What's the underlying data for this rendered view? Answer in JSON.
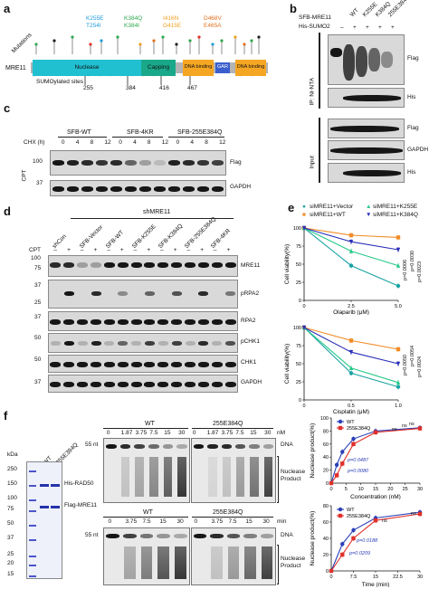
{
  "panels": {
    "a": {
      "label": "a",
      "side_label": "Mutations",
      "protein": "MRE11",
      "mutations": [
        {
          "text": "K255E",
          "color": "#1f9bd8"
        },
        {
          "text": "T254I",
          "color": "#1f9bd8"
        },
        {
          "text": "K384Q",
          "color": "#2fa84f"
        },
        {
          "text": "K384I",
          "color": "#2fa84f"
        },
        {
          "text": "I416N",
          "color": "#f0a020"
        },
        {
          "text": "G415E",
          "color": "#f0a020"
        },
        {
          "text": "D468V",
          "color": "#e07020"
        },
        {
          "text": "E465A",
          "color": "#e07020"
        }
      ],
      "domains": [
        {
          "text": "Nuclease",
          "color": "#20c0d0"
        },
        {
          "text": "Capping",
          "color": "#1aa88a"
        },
        {
          "text": "DNA binding",
          "color": "#f5a623"
        },
        {
          "text": "GAR",
          "color": "#3a5fcd"
        },
        {
          "text": "DNA binding",
          "color": "#f5a623"
        }
      ],
      "sumo_label": "SUMOylated sites",
      "positions": [
        "255",
        "384",
        "416",
        "467"
      ]
    },
    "b": {
      "label": "b",
      "rows": [
        {
          "text": "SFB-MRE11",
          "values": [
            "WT",
            "K255E",
            "K384Q",
            "255E384Q"
          ]
        },
        {
          "text": "His-SUMO2",
          "values": [
            "–",
            "+",
            "+",
            "+",
            "+"
          ]
        }
      ],
      "group_labels": [
        "IP: Ni-NTA",
        "Input"
      ],
      "blot_labels": [
        "Flag",
        "His",
        "Flag",
        "GAPDH",
        "His"
      ]
    },
    "c": {
      "label": "c",
      "groups": [
        "SFB-WT",
        "SFB-4KR",
        "SFB-255E384Q"
      ],
      "chx_label": "CHX (h)",
      "times": [
        "0",
        "4",
        "8",
        "12",
        "0",
        "4",
        "8",
        "12",
        "0",
        "4",
        "8",
        "12"
      ],
      "side_label": "CPT",
      "mw": [
        "100",
        "37"
      ],
      "blot_labels": [
        "Flag",
        "GAPDH"
      ]
    },
    "d": {
      "label": "d",
      "header": "shMRE11",
      "lanes": [
        "shCon",
        "SFB-Vector",
        "SFB-WT",
        "SFB-K255E",
        "SFB-K384Q",
        "SFB-255E384Q",
        "SFB-4KR"
      ],
      "cpt_label": "CPT",
      "cpt_signs": [
        "–",
        "+",
        "–",
        "+",
        "–",
        "+",
        "–",
        "+",
        "–",
        "+",
        "–",
        "+",
        "–",
        "+"
      ],
      "mw": [
        "100",
        "75",
        "37",
        "25",
        "37",
        "50",
        "50",
        "37"
      ],
      "blot_labels": [
        "MRE11",
        "pRPA2",
        "RPA2",
        "pCHK1",
        "CHK1",
        "GAPDH"
      ]
    },
    "e": {
      "label": "e",
      "legend": [
        "siMRE11+Vector",
        "siMRE11+WT",
        "siMRE11+K255E",
        "siMRE11+K384Q"
      ],
      "pvalues_top": [
        "p=0.0030",
        "p=0.0006",
        "p=0.0023"
      ],
      "pvalues_bottom": [
        "p=0.0054",
        "p=0.0050",
        "p=0.0024"
      ]
    },
    "f": {
      "label": "f",
      "sds_kda": "kDa",
      "sds_mw": [
        "250",
        "150",
        "100",
        "75",
        "50",
        "37",
        "25",
        "20",
        "15"
      ],
      "sds_lanes": [
        "WT",
        "255E384Q"
      ],
      "sds_bands": [
        "His-RAD50",
        "Flag-MRE11"
      ],
      "gel1": {
        "groups": [
          "WT",
          "255E384Q"
        ],
        "lanes": [
          "0",
          "1.87",
          "3.75",
          "7.5",
          "15",
          "30",
          "0",
          "1.87",
          "3.75",
          "7.5",
          "15",
          "30"
        ],
        "unit": "nM",
        "marker": "55 nt",
        "labels": [
          "DNA",
          "Nuclease Product"
        ]
      },
      "gel2": {
        "groups": [
          "WT",
          "255E384Q"
        ],
        "lanes": [
          "0",
          "3.75",
          "7.5",
          "15",
          "30",
          "0",
          "3.75",
          "7.5",
          "15",
          "30"
        ],
        "unit": "min",
        "marker": "55 nt",
        "labels": [
          "DNA",
          "Nuclease Product"
        ]
      }
    }
  },
  "chart_data": [
    {
      "type": "line",
      "xlabel": "Olaparib (μM)",
      "ylabel": "Cell viability(%)",
      "x": [
        0,
        2.5,
        5.0
      ],
      "xticks": [
        "0",
        "2.5",
        "5.0"
      ],
      "yticks": [
        "0",
        "25",
        "50",
        "75",
        "100"
      ],
      "ylim": [
        0,
        100
      ],
      "series": [
        {
          "name": "siMRE11+Vector",
          "color": "#1aa3a3",
          "values": [
            100,
            48,
            20
          ]
        },
        {
          "name": "siMRE11+WT",
          "color": "#f28c28",
          "values": [
            100,
            90,
            87
          ]
        },
        {
          "name": "siMRE11+K255E",
          "color": "#26c98a",
          "values": [
            100,
            68,
            48
          ]
        },
        {
          "name": "siMRE11+K384Q",
          "color": "#2a2fb8",
          "values": [
            100,
            81,
            70
          ]
        }
      ]
    },
    {
      "type": "line",
      "xlabel": "Cisplatin (μM)",
      "ylabel": "Cell viability(%)",
      "x": [
        0,
        0.5,
        1.0
      ],
      "xticks": [
        "0",
        "0.5",
        "1.0"
      ],
      "yticks": [
        "0",
        "25",
        "50",
        "75",
        "100"
      ],
      "ylim": [
        0,
        100
      ],
      "series": [
        {
          "name": "siMRE11+Vector",
          "color": "#1aa3a3",
          "values": [
            100,
            37,
            18
          ]
        },
        {
          "name": "siMRE11+WT",
          "color": "#f28c28",
          "values": [
            100,
            82,
            70
          ]
        },
        {
          "name": "siMRE11+K255E",
          "color": "#26c98a",
          "values": [
            100,
            44,
            24
          ]
        },
        {
          "name": "siMRE11+K384Q",
          "color": "#2a2fb8",
          "values": [
            100,
            66,
            50
          ]
        }
      ]
    },
    {
      "type": "line",
      "xlabel": "Concentration (nM)",
      "ylabel": "Nuclease product(%)",
      "x": [
        0,
        1.87,
        3.75,
        7.5,
        15,
        30
      ],
      "xticks": [
        "0",
        "5",
        "10",
        "15",
        "20",
        "25",
        "30"
      ],
      "yticks": [
        "0",
        "20",
        "40",
        "60",
        "80",
        "100"
      ],
      "ylim": [
        0,
        100
      ],
      "legend": [
        "WT",
        "255E384Q"
      ],
      "annotations": [
        "ns",
        "ns",
        "ns",
        "p=0.0487",
        "p=0.0080"
      ],
      "series": [
        {
          "name": "WT",
          "color": "#2a3fb8",
          "values": [
            0,
            28,
            48,
            68,
            80,
            85
          ]
        },
        {
          "name": "255E384Q",
          "color": "#e0302a",
          "values": [
            0,
            12,
            30,
            60,
            78,
            84
          ]
        }
      ]
    },
    {
      "type": "line",
      "xlabel": "Time (min)",
      "ylabel": "Nuclease product(%)",
      "x": [
        0,
        3.75,
        7.5,
        15,
        30
      ],
      "xticks": [
        "0",
        "7.5",
        "15",
        "22.5",
        "30"
      ],
      "yticks": [
        "0",
        "20",
        "40",
        "60",
        "80"
      ],
      "ylim": [
        0,
        80
      ],
      "legend": [
        "WT",
        "255E384Q"
      ],
      "annotations": [
        "ns",
        "ns",
        "p=0.0188",
        "p=0.0209"
      ],
      "series": [
        {
          "name": "WT",
          "color": "#2a3fb8",
          "values": [
            0,
            33,
            50,
            65,
            72
          ]
        },
        {
          "name": "255E384Q",
          "color": "#e0302a",
          "values": [
            0,
            20,
            40,
            62,
            70
          ]
        }
      ]
    }
  ]
}
